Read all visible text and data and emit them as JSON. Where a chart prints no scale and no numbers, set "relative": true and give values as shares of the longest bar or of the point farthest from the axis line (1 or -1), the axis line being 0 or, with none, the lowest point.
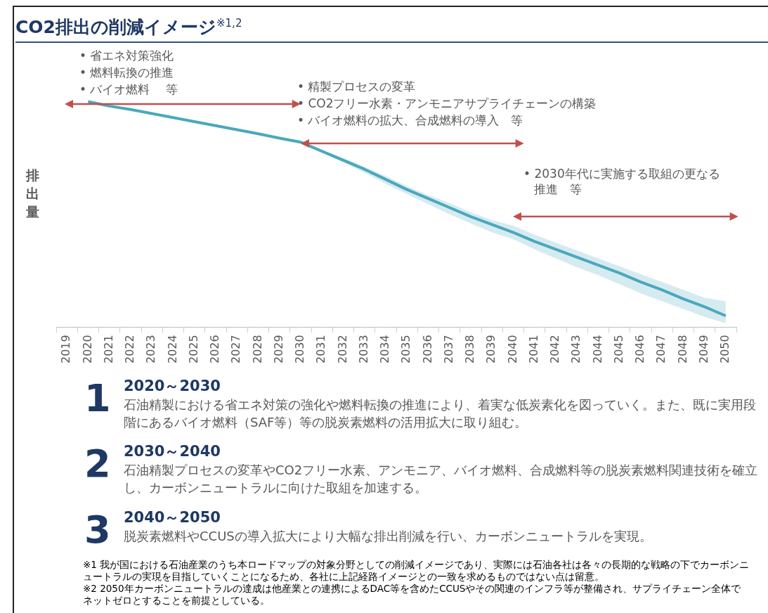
{
  "chart_data": {
    "type": "line",
    "title": "CO2排出の削減イメージ$^{※1,2}$",
    "ylabel": "排出量",
    "relative": true,
    "legend": false,
    "grid": false,
    "marker": "none",
    "line_style": "solid",
    "categories": [
      "2019",
      "2020",
      "2021",
      "2022",
      "2023",
      "2024",
      "2025",
      "2026",
      "2027",
      "2028",
      "2029",
      "2030",
      "2031",
      "2032",
      "2033",
      "2034",
      "2035",
      "2036",
      "2037",
      "2038",
      "2039",
      "2040",
      "2041",
      "2042",
      "2043",
      "2044",
      "2045",
      "2046",
      "2047",
      "2048",
      "2049",
      "2050"
    ],
    "series": [
      {
        "color": "#4aa8bc",
        "values": [
          null,
          1,
          0.98,
          0.965,
          0.947,
          0.929,
          0.911,
          0.893,
          0.875,
          0.857,
          0.838,
          0.82,
          0.78,
          0.74,
          0.7,
          0.655,
          0.61,
          0.57,
          0.53,
          0.49,
          0.455,
          0.42,
          0.38,
          0.345,
          0.31,
          0.275,
          0.24,
          0.2,
          0.165,
          0.125,
          0.09,
          0.05
        ],
        "lower": [
          null,
          null,
          null,
          null,
          null,
          null,
          null,
          null,
          null,
          null,
          null,
          0.82,
          0.775,
          0.73,
          0.685,
          0.635,
          0.59,
          0.545,
          0.5,
          0.46,
          0.42,
          0.39,
          0.345,
          0.305,
          0.265,
          0.23,
          0.19,
          0.15,
          0.115,
          0.08,
          0.045,
          0.017
        ],
        "upper": [
          null,
          null,
          null,
          null,
          null,
          null,
          null,
          null,
          null,
          null,
          null,
          0.82,
          0.785,
          0.75,
          0.71,
          0.67,
          0.625,
          0.585,
          0.55,
          0.51,
          0.475,
          0.45,
          0.41,
          0.375,
          0.34,
          0.305,
          0.27,
          0.235,
          0.2,
          0.165,
          0.13,
          0.115
        ]
      }
    ],
    "annotations": [
      "• 省エネ対策強化",
      "• 燃料転換の推進",
      "• バイオ燃料　 等",
      "• 精製プロセスの変革",
      "• CO2フリー水素・アンモニアサプライチェーンの構築",
      "• バイオ燃料の拡大、合成燃料の導入　等",
      "• 2030年代に実施する取組の更なる推進　等",
      "1",
      "2020～2030",
      "石油精製における省エネ対策の強化や燃料転換の推進により、着実な低炭素化を図っていく。また、既に実用段階にあるバイオ燃料（SAF等）等の脱炭素燃料の活用拡大に取り組む。",
      "2",
      "2030～2040",
      "石油精製プロセスの変革やCO2フリー水素、アンモニア、バイオ燃料、合成燃料等の脱炭素燃料関連技術を確立し、カーボンニュートラルに向けた取組を加速する。",
      "3",
      "2040～2050",
      "脱炭素燃料やCCUSの導入拡大により大幅な排出削減を行い、カーボンニュートラルを実現。",
      "※1 我が国における石油産業のうち本ロードマップの対象分野としての削減イメージであり、実際には石油各社は各々の長期的な戦略の下でカーボンニュートラルの実現を目指していくことになるため、各社に上記経路イメージとの一致を求めるものではない点は留意。",
      "※2 2050年カーボンニュートラルの達成は他産業との連携によるDAC等を含めたCCUSやその関連のインフラ等が整備され、サプライチェーン全体でネットゼロとすることを前提としている。"
    ]
  }
}
